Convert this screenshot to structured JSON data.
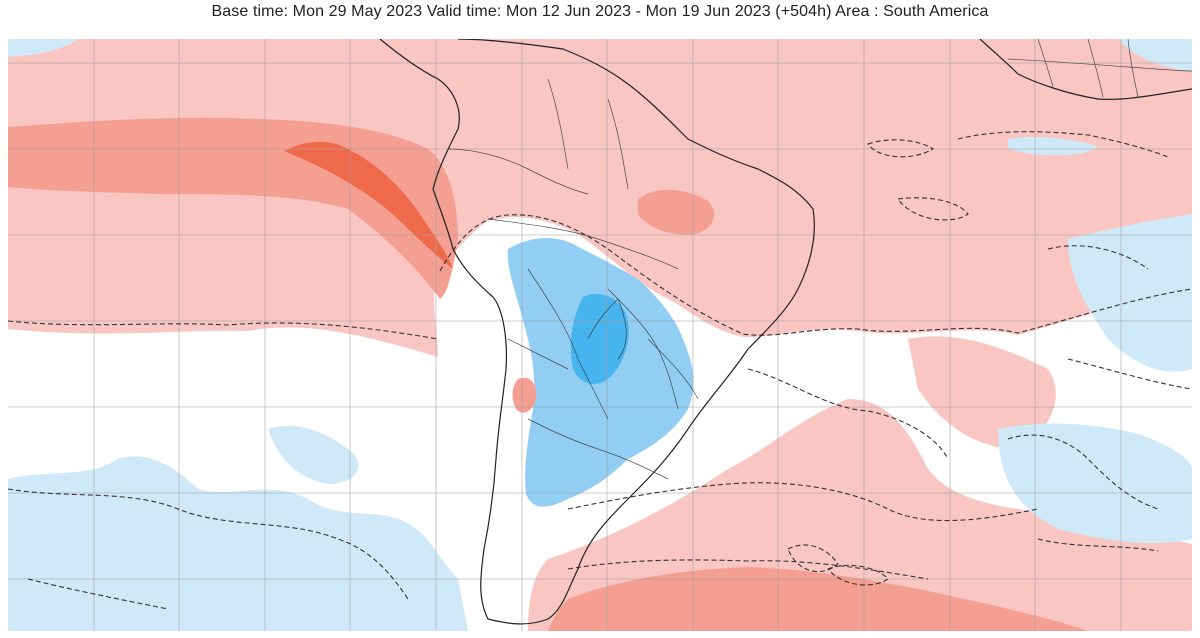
{
  "header": {
    "title": "Base time: Mon 29 May 2023 Valid time: Mon 12 Jun 2023 - Mon 19 Jun 2023 (+504h) Area : South America"
  },
  "map": {
    "region": "South America",
    "palette": {
      "background": "#ffffff",
      "light_warm": "#f9c6c2",
      "medium_warm": "#f59f93",
      "strong_warm": "#ef6a4a",
      "peak_warm": "#e94b2c",
      "light_cool": "#cfe9f9",
      "medium_cool": "#92cdf4",
      "strong_cool": "#46b4ee",
      "peak_cool": "#1e9ae6",
      "land_border": "#222222",
      "grid": "#9e9e9e",
      "contour": "#333333"
    }
  }
}
